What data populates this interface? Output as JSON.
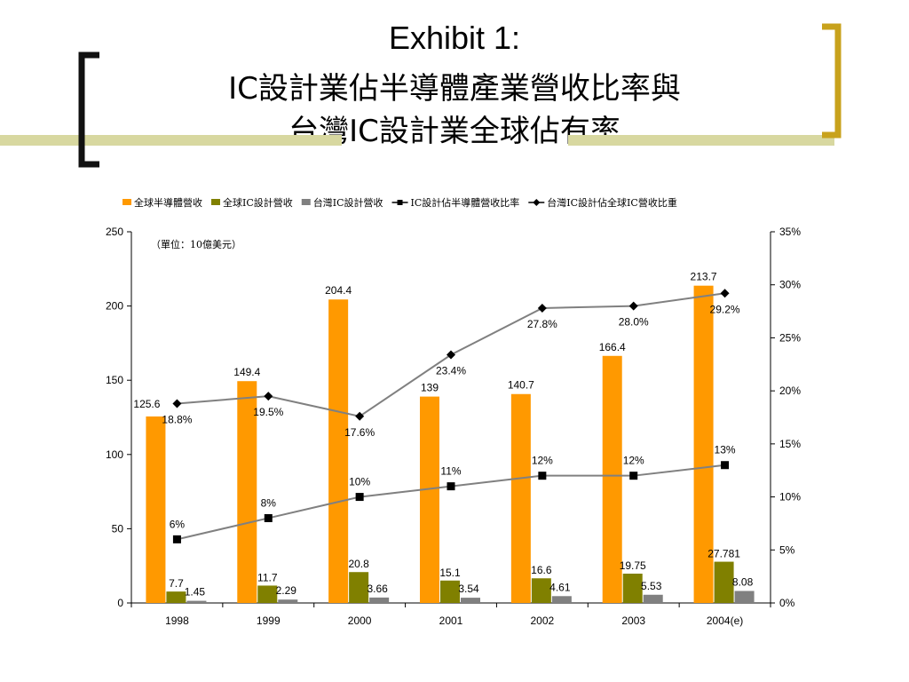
{
  "slide": {
    "title_line1": "Exhibit 1:",
    "title_line2": "IC設計業佔半導體產業營收比率與",
    "title_line3": "台灣IC設計業全球佔有率",
    "colors": {
      "bracket": "#C8A21C",
      "accent_bar": "#D8D8A0"
    }
  },
  "chart_data": {
    "type": "bar",
    "title": "",
    "annotation": "（單位：10億美元）",
    "categories": [
      "1998",
      "1999",
      "2000",
      "2001",
      "2002",
      "2003",
      "2004(e)"
    ],
    "y_left": {
      "min": 0,
      "max": 250,
      "ticks": [
        "0",
        "50",
        "100",
        "150",
        "200",
        "250"
      ]
    },
    "y_right": {
      "min": 0,
      "max": 35,
      "ticks": [
        "0%",
        "5%",
        "10%",
        "15%",
        "20%",
        "25%",
        "30%",
        "35%"
      ]
    },
    "grid": false,
    "legend_position": "top",
    "series": [
      {
        "name": "全球半導體營收",
        "kind": "bar",
        "axis": "left",
        "color": "#FF9900",
        "values": [
          125.6,
          149.4,
          204.4,
          139,
          140.7,
          166.4,
          213.7
        ],
        "labels": [
          "125.6",
          "149.4",
          "204.4",
          "139",
          "140.7",
          "166.4",
          "213.7"
        ]
      },
      {
        "name": "全球IC設計營收",
        "kind": "bar",
        "axis": "left",
        "color": "#808000",
        "values": [
          7.7,
          11.7,
          20.8,
          15.1,
          16.6,
          19.75,
          27.781
        ],
        "labels": [
          "7.7",
          "11.7",
          "20.8",
          "15.1",
          "16.6",
          "19.75",
          "27.781"
        ]
      },
      {
        "name": "台灣IC設計營收",
        "kind": "bar",
        "axis": "left",
        "color": "#808080",
        "values": [
          1.45,
          2.29,
          3.66,
          3.54,
          4.61,
          5.53,
          8.08
        ],
        "labels": [
          "1.45",
          "2.29",
          "3.66",
          "3.54",
          "4.61",
          "5.53",
          "8.08"
        ]
      },
      {
        "name": "IC設計佔半導體營收比率",
        "kind": "line",
        "axis": "right",
        "color": "#808080",
        "marker": "square",
        "values": [
          6,
          8,
          10,
          11,
          12,
          12,
          13
        ],
        "labels": [
          "6%",
          "8%",
          "10%",
          "11%",
          "12%",
          "12%",
          "13%"
        ]
      },
      {
        "name": "台灣IC設計佔全球IC營收比重",
        "kind": "line",
        "axis": "right",
        "color": "#808080",
        "marker": "diamond",
        "values": [
          18.8,
          19.5,
          17.6,
          23.4,
          27.8,
          28.0,
          29.2
        ],
        "labels": [
          "18.8%",
          "19.5%",
          "17.6%",
          "23.4%",
          "27.8%",
          "28.0%",
          "29.2%"
        ]
      }
    ]
  }
}
